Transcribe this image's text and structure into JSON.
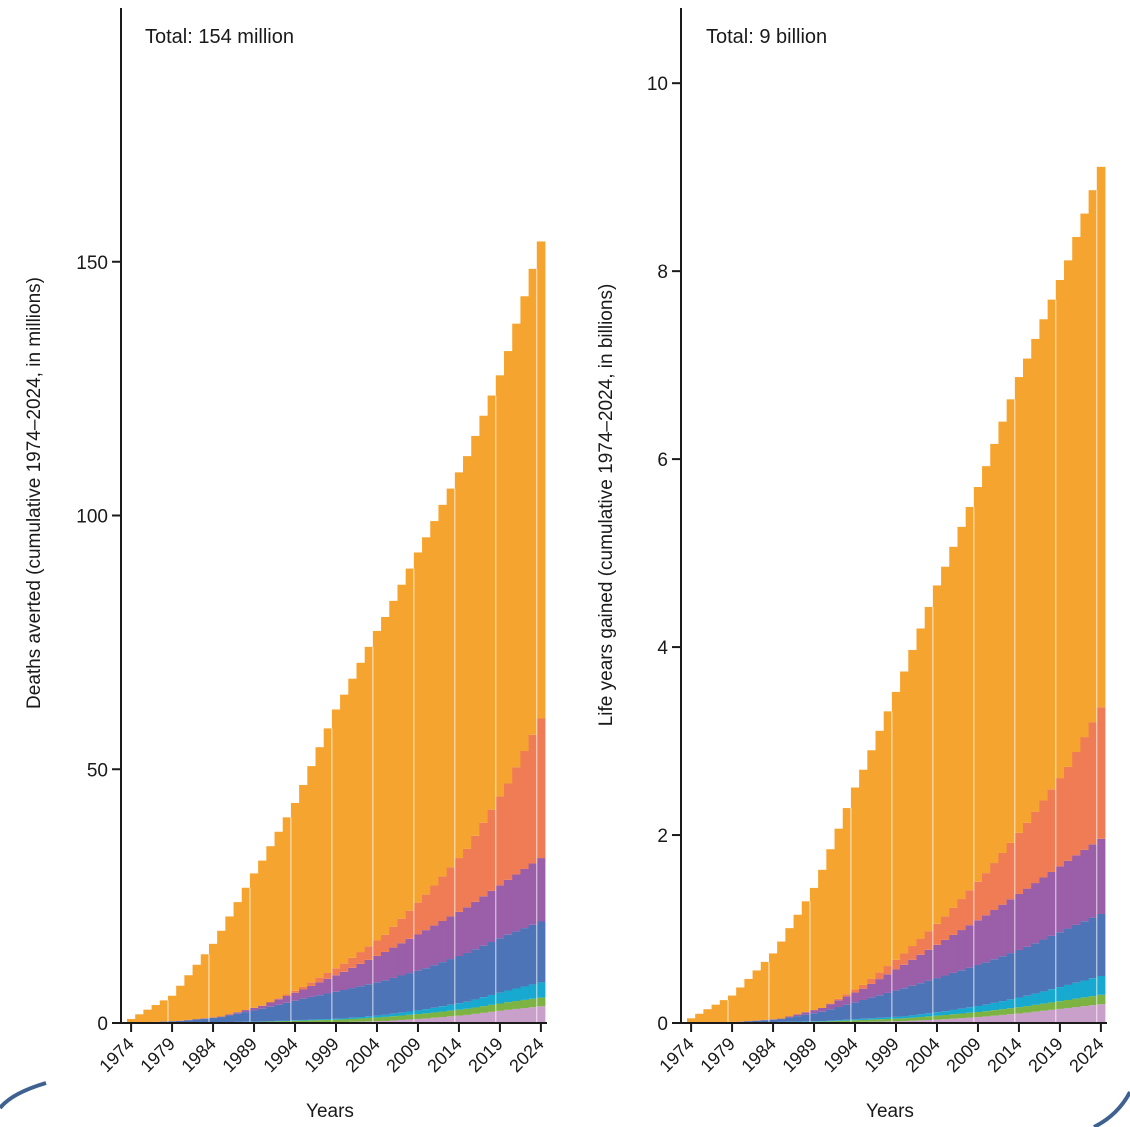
{
  "chart_data": [
    {
      "type": "bar",
      "stacked": true,
      "title": "Total: 154 million",
      "xlabel": "Years",
      "ylabel": "Deaths averted (cumulative 1974–2024, in millions)",
      "ylim": [
        0,
        200
      ],
      "yticks": [
        0,
        50,
        100,
        150
      ],
      "xticks": [
        "1974",
        "1979",
        "1984",
        "1989",
        "1994",
        "1999",
        "2004",
        "2009",
        "2014",
        "2019",
        "2024"
      ],
      "x_start": 1974,
      "x_end": 2024,
      "grid": false,
      "series": [
        {
          "color": "#c9a0c9",
          "x": [
            1974,
            1990,
            2000,
            2005,
            2010,
            2015,
            2020,
            2024
          ],
          "values": [
            0,
            0.05,
            0.2,
            0.4,
            0.9,
            1.6,
            2.6,
            3.3
          ]
        },
        {
          "color": "#7cb342",
          "x": [
            1974,
            1985,
            1990,
            2000,
            2005,
            2010,
            2015,
            2020,
            2024
          ],
          "values": [
            0,
            0.1,
            0.2,
            0.5,
            0.8,
            1.0,
            1.2,
            1.5,
            1.7
          ]
        },
        {
          "color": "#17a9cf",
          "x": [
            1974,
            1990,
            2000,
            2005,
            2010,
            2015,
            2020,
            2024
          ],
          "values": [
            0,
            0.05,
            0.2,
            0.4,
            0.8,
            1.4,
            2.3,
            3.0
          ]
        },
        {
          "color": "#4e74b8",
          "x": [
            1974,
            1980,
            1985,
            1990,
            1995,
            2000,
            2005,
            2010,
            2015,
            2020,
            2024
          ],
          "values": [
            0,
            0.3,
            1.0,
            2.5,
            4.2,
            5.6,
            6.8,
            8.1,
            9.6,
            11.0,
            12.0
          ]
        },
        {
          "color": "#9b5ea8",
          "x": [
            1974,
            1985,
            1990,
            1995,
            2000,
            2005,
            2010,
            2015,
            2020,
            2024
          ],
          "values": [
            0,
            0.1,
            0.6,
            1.8,
            3.6,
            5.6,
            7.5,
            9.0,
            10.8,
            12.5
          ]
        },
        {
          "color": "#f07c55",
          "x": [
            1974,
            1990,
            1995,
            2000,
            2005,
            2010,
            2015,
            2020,
            2024
          ],
          "values": [
            0,
            0,
            0.5,
            1.6,
            3.4,
            7.0,
            11.5,
            19.0,
            27.5
          ]
        },
        {
          "color": "#f5a42f",
          "x": [
            1974,
            1979,
            1984,
            1989,
            1994,
            1999,
            2004,
            2009,
            2014,
            2019,
            2024
          ],
          "values": [
            0.8,
            5.0,
            14.5,
            26.5,
            37.0,
            51.0,
            61.0,
            69.0,
            76.0,
            83.0,
            94.0
          ]
        }
      ]
    },
    {
      "type": "bar",
      "stacked": true,
      "title": "Total: 9 billion",
      "xlabel": "Years",
      "ylabel": "Life years gained (cumulative 1974–2024, in billions)",
      "ylim": [
        0,
        10.8
      ],
      "yticks": [
        0,
        2,
        4,
        6,
        8,
        10
      ],
      "xticks": [
        "1974",
        "1979",
        "1984",
        "1989",
        "1994",
        "1999",
        "2004",
        "2009",
        "2014",
        "2019",
        "2024"
      ],
      "x_start": 1974,
      "x_end": 2024,
      "grid": false,
      "series": [
        {
          "color": "#c9a0c9",
          "x": [
            1974,
            1990,
            2000,
            2005,
            2010,
            2015,
            2020,
            2024
          ],
          "values": [
            0,
            0.005,
            0.02,
            0.04,
            0.07,
            0.11,
            0.16,
            0.2
          ]
        },
        {
          "color": "#7cb342",
          "x": [
            1974,
            1985,
            1990,
            2000,
            2005,
            2010,
            2015,
            2020,
            2024
          ],
          "values": [
            0,
            0.005,
            0.01,
            0.03,
            0.045,
            0.055,
            0.07,
            0.085,
            0.1
          ]
        },
        {
          "color": "#17a9cf",
          "x": [
            1974,
            1990,
            2000,
            2005,
            2010,
            2015,
            2020,
            2024
          ],
          "values": [
            0,
            0.005,
            0.02,
            0.04,
            0.07,
            0.11,
            0.16,
            0.2
          ]
        },
        {
          "color": "#4e74b8",
          "x": [
            1974,
            1980,
            1985,
            1990,
            1995,
            2000,
            2005,
            2010,
            2015,
            2020,
            2024
          ],
          "values": [
            0,
            0.005,
            0.03,
            0.1,
            0.2,
            0.3,
            0.38,
            0.45,
            0.52,
            0.6,
            0.66
          ]
        },
        {
          "color": "#9b5ea8",
          "x": [
            1974,
            1985,
            1990,
            1995,
            2000,
            2005,
            2010,
            2015,
            2020,
            2024
          ],
          "values": [
            0,
            0.005,
            0.04,
            0.12,
            0.25,
            0.38,
            0.5,
            0.62,
            0.72,
            0.8
          ]
        },
        {
          "color": "#f07c55",
          "x": [
            1974,
            1990,
            1995,
            2000,
            2005,
            2010,
            2015,
            2020,
            2024
          ],
          "values": [
            0,
            0,
            0.04,
            0.12,
            0.25,
            0.45,
            0.7,
            1.0,
            1.4
          ]
        },
        {
          "color": "#f5a42f",
          "x": [
            1974,
            1979,
            1984,
            1989,
            1994,
            1999,
            2004,
            2009,
            2014,
            2019,
            2024
          ],
          "values": [
            0.05,
            0.28,
            0.7,
            1.3,
            2.15,
            2.85,
            3.6,
            4.2,
            4.85,
            5.3,
            5.75
          ]
        }
      ]
    }
  ]
}
